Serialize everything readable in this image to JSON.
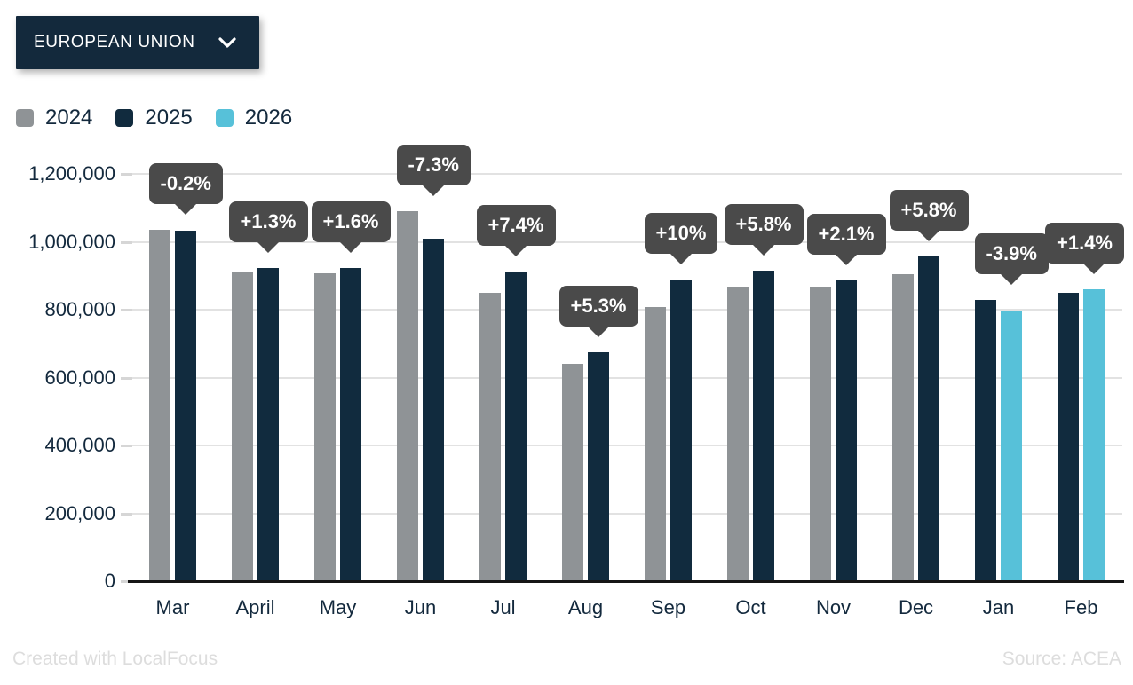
{
  "region_selector": {
    "label": "EUROPEAN UNION"
  },
  "chart_data": {
    "type": "bar",
    "title": "",
    "categories": [
      "Mar",
      "April",
      "May",
      "Jun",
      "Jul",
      "Aug",
      "Sep",
      "Oct",
      "Nov",
      "Dec",
      "Jan",
      "Feb"
    ],
    "series": [
      {
        "name": "2024",
        "color": "#8f9396",
        "values": [
          1035000,
          912000,
          908000,
          1090000,
          850000,
          641000,
          807000,
          865000,
          867000,
          905000,
          null,
          null
        ]
      },
      {
        "name": "2025",
        "color": "#112b3e",
        "values": [
          1033000,
          924000,
          922000,
          1010000,
          913000,
          675000,
          888000,
          915000,
          885000,
          957000,
          828000,
          849000
        ]
      },
      {
        "name": "2026",
        "color": "#57c1d9",
        "values": [
          null,
          null,
          null,
          null,
          null,
          null,
          null,
          null,
          null,
          null,
          796000,
          861000
        ]
      }
    ],
    "change_labels": [
      "-0.2%",
      "+1.3%",
      "+1.6%",
      "-7.3%",
      "+7.4%",
      "+5.3%",
      "+10%",
      "+5.8%",
      "+2.1%",
      "+5.8%",
      "-3.9%",
      "+1.4%"
    ],
    "ylim": [
      0,
      1200000
    ],
    "ytick_labels": [
      "0",
      "200,000",
      "400,000",
      "600,000",
      "800,000",
      "1,000,000",
      "1,200,000"
    ],
    "grid": "horizontal",
    "legend_position": "top-left",
    "colors": {
      "callout_bg": "#4a4a4a",
      "callout_text": "#ffffff",
      "gridline": "#e2e2e2",
      "axis_text": "#13293d",
      "baseline": "#151515"
    }
  },
  "footer": {
    "left": "Created with LocalFocus",
    "right": "Source:  ACEA"
  }
}
